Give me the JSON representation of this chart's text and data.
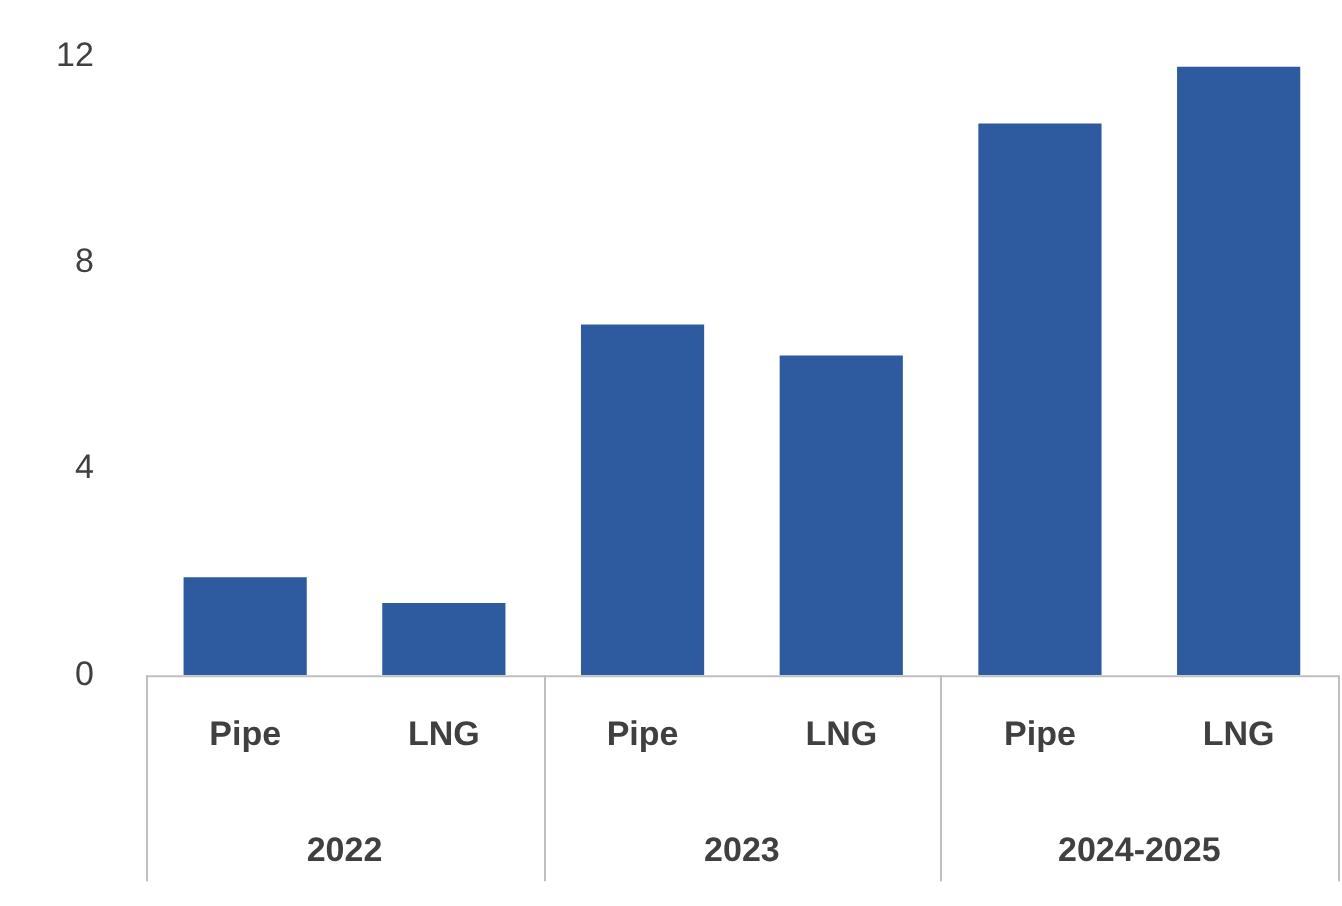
{
  "chart_data": {
    "type": "bar",
    "categories": [
      "Pipe",
      "LNG",
      "Pipe",
      "LNG",
      "Pipe",
      "LNG"
    ],
    "values": [
      1.9,
      1.4,
      6.8,
      6.2,
      10.7,
      11.8
    ],
    "color": "#2e5aa0",
    "ylim": [
      0,
      12
    ],
    "yticks": [
      0,
      4,
      8,
      12
    ],
    "grid": false,
    "legend": false,
    "annotations": [
      "2022",
      "2023",
      "2024-2025"
    ]
  }
}
